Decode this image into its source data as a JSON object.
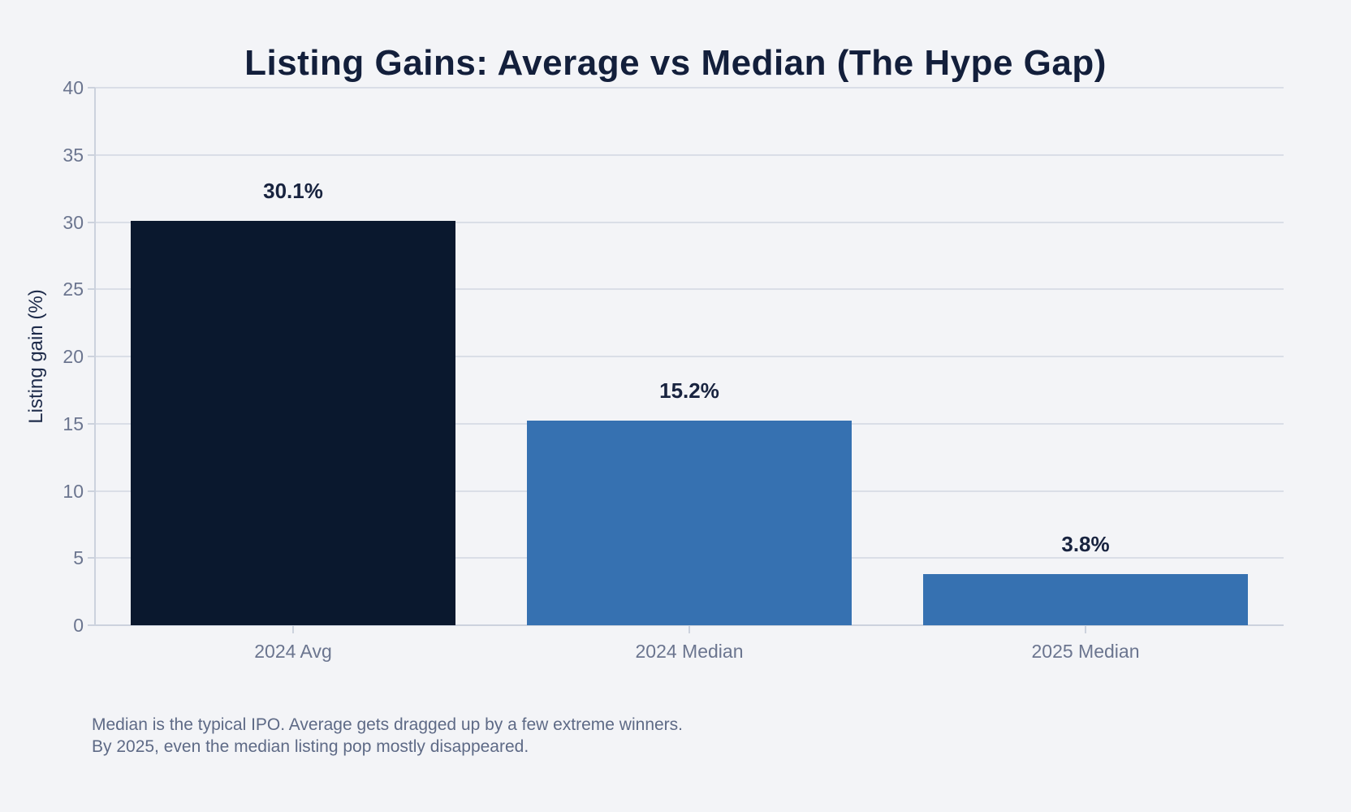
{
  "title": "Listing Gains: Average vs Median (The Hype Gap)",
  "chart_data": {
    "type": "bar",
    "categories": [
      "2024 Avg",
      "2024 Median",
      "2025 Median"
    ],
    "values": [
      30.1,
      15.2,
      3.8
    ],
    "value_labels": [
      "30.1%",
      "15.2%",
      "3.8%"
    ],
    "bar_colors": [
      "#0a182e",
      "#3671b1",
      "#3671b1"
    ],
    "title": "Listing Gains: Average vs Median (The Hype Gap)",
    "xlabel": "",
    "ylabel": "Listing gain (%)",
    "ylim": [
      0,
      40
    ],
    "yticks": [
      0,
      5,
      10,
      15,
      20,
      25,
      30,
      35,
      40
    ],
    "grid": "horizontal",
    "legend": "none"
  },
  "annotation": {
    "line1": "Median is the typical IPO. Average gets dragged up by a few extreme winners.",
    "line2": "By 2025, even the median listing pop mostly disappeared."
  },
  "colors": {
    "background": "#f3f4f7",
    "title_text": "#131f3b",
    "bar_dark_navy": "#0a182e",
    "bar_blue": "#3671b1",
    "tick_label_text": "#6b758f",
    "annotation_text": "#5e6a86",
    "gridline": "#dadee7",
    "axis_spine": "#ccd2dd"
  }
}
